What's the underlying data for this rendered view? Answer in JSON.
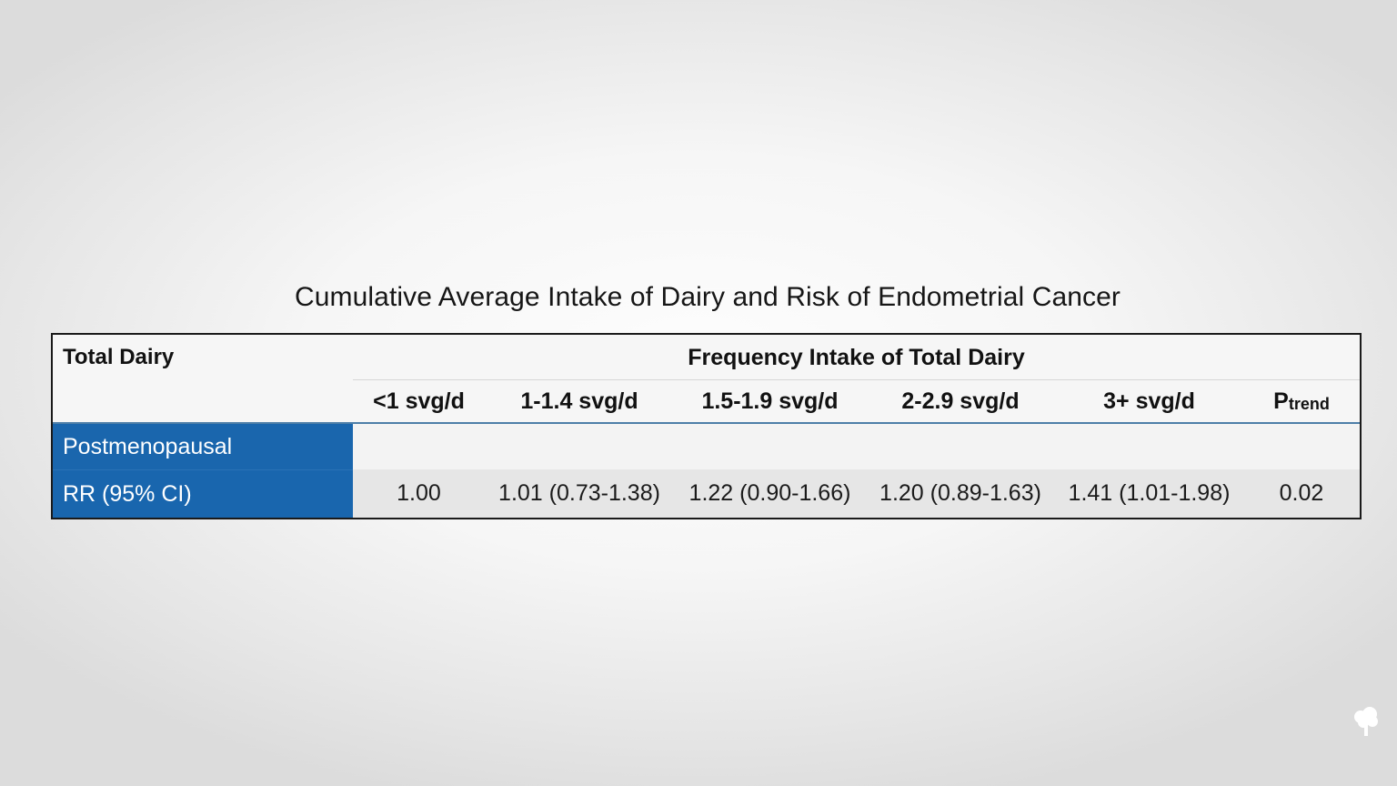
{
  "chart_data": {
    "type": "table",
    "title": "Cumulative Average Intake of Dairy and Risk of Endometrial Cancer",
    "row_header_label": "Total Dairy",
    "column_group_label": "Frequency Intake of Total Dairy",
    "columns": [
      "<1 svg/d",
      "1-1.4 svg/d",
      "1.5-1.9 svg/d",
      "2-2.9 svg/d",
      "3+ svg/d"
    ],
    "ptrend_label": {
      "main": "P",
      "sub": "trend"
    },
    "group_label": "Postmenopausal",
    "rows": [
      {
        "label": "RR (95% CI)",
        "values": [
          "1.00",
          "1.01 (0.73-1.38)",
          "1.22 (0.90-1.66)",
          "1.20 (0.89-1.63)",
          "1.41 (1.01-1.98)",
          "0.02"
        ]
      }
    ],
    "colors": {
      "row_label_fill": "#1a66ad",
      "header_rule": "#4d7ea8",
      "border": "#1a1a1a"
    }
  },
  "logo": {
    "icon": "tree-icon"
  }
}
